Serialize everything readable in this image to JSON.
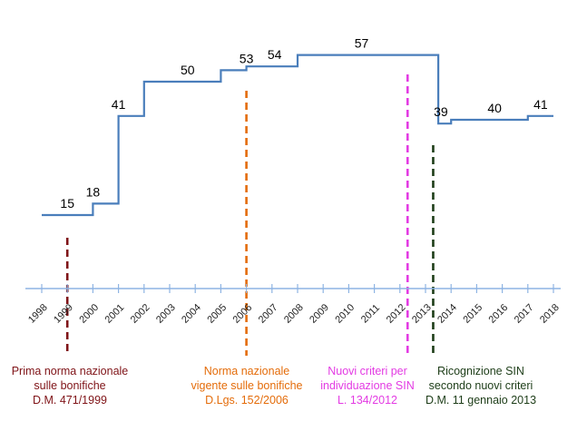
{
  "chart_data": {
    "type": "line",
    "step": true,
    "x": [
      1998,
      1999,
      2000,
      2001,
      2002,
      2003,
      2004,
      2005,
      2006,
      2007,
      2008,
      2009,
      2010,
      2011,
      2012,
      2013,
      2013.5,
      2014,
      2015,
      2016,
      2017,
      2018
    ],
    "series": [
      {
        "values": [
          15,
          15,
          18,
          41,
          50,
          50,
          50,
          53,
          54,
          54,
          57,
          57,
          57,
          57,
          57,
          57,
          39,
          40,
          40,
          40,
          41,
          41
        ],
        "color": "#4a7ebb"
      }
    ],
    "data_labels": [
      {
        "x": 1999,
        "value": "15"
      },
      {
        "x": 2000,
        "value": "18"
      },
      {
        "x": 2001,
        "value": "41"
      },
      {
        "x": 2003.7,
        "value": "50"
      },
      {
        "x": 2006,
        "value": "53"
      },
      {
        "x": 2007.1,
        "value": "54"
      },
      {
        "x": 2010.5,
        "value": "57"
      },
      {
        "x": 2013.6,
        "value": "39"
      },
      {
        "x": 2015.7,
        "value": "40"
      },
      {
        "x": 2017.5,
        "value": "41"
      }
    ],
    "xlim": [
      1998,
      2018
    ],
    "ylim": [
      0,
      57
    ],
    "tick_labels": [
      "1998",
      "1999",
      "2000",
      "2001",
      "2002",
      "2003",
      "2004",
      "2005",
      "2006",
      "2007",
      "2008",
      "2009",
      "2010",
      "2011",
      "2012",
      "2013",
      "2014",
      "2015",
      "2016",
      "2017",
      "2018"
    ],
    "axis_color": "#8eb4e3",
    "grid": false,
    "legend": "none"
  },
  "annotations": [
    {
      "x": 1999,
      "color": "#7f1317",
      "lines": [
        "Prima norma nazionale",
        "sulle bonifiche",
        "D.M. 471/1999"
      ]
    },
    {
      "x": 2006,
      "color": "#e46c0a",
      "lines": [
        "Norma nazionale",
        "vigente sulle bonifiche",
        "D.Lgs. 152/2006"
      ]
    },
    {
      "x": 2012.3,
      "color": "#e33be3",
      "lines": [
        "Nuovi criteri per",
        "individuazione SIN",
        "L. 134/2012"
      ]
    },
    {
      "x": 2013.3,
      "color": "#1d3d18",
      "lines": [
        "Ricognizione SIN",
        "secondo nuovi criteri",
        "D.M. 11 gennaio 2013"
      ]
    }
  ]
}
